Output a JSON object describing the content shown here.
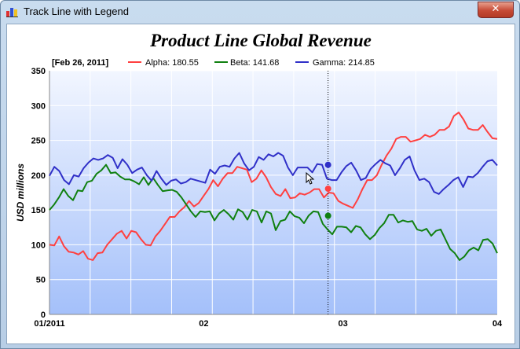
{
  "window": {
    "title": "Track Line with Legend",
    "close_label": "✕"
  },
  "chart_data": {
    "type": "line",
    "title": "Product Line Global Revenue",
    "ylabel": "USD millions",
    "xlabel": "",
    "ylim": [
      0,
      350
    ],
    "yticks": [
      0,
      50,
      100,
      150,
      200,
      250,
      300,
      350
    ],
    "xlim": [
      0,
      90
    ],
    "xticks": [
      {
        "label": "01/2011",
        "x": 0
      },
      {
        "label": "02",
        "x": 31
      },
      {
        "label": "03",
        "x": 59
      },
      {
        "label": "04",
        "x": 90
      }
    ],
    "grid": true,
    "legend_position": "top",
    "track_date_label": "[Feb 26, 2011]",
    "track_x": 56,
    "series": [
      {
        "name": "Alpha",
        "legend_label": "Alpha: 180.55",
        "color": "#ff4040",
        "tracked_value": 180.55,
        "values": [
          100,
          99,
          112,
          98,
          90,
          89,
          86,
          91,
          80,
          78,
          88,
          89,
          100,
          108,
          116,
          120,
          109,
          120,
          118,
          108,
          100,
          99,
          112,
          120,
          130,
          140,
          140,
          148,
          154,
          163,
          155,
          160,
          170,
          180,
          193,
          184,
          195,
          203,
          203,
          212,
          210,
          208,
          190,
          195,
          207,
          197,
          183,
          173,
          170,
          180,
          167,
          168,
          174,
          172,
          175,
          180,
          180,
          168,
          175,
          174,
          163,
          159,
          156,
          153,
          165,
          180,
          193,
          193,
          200,
          215,
          228,
          238,
          252,
          255,
          255,
          248,
          250,
          252,
          258,
          255,
          258,
          265,
          265,
          270,
          285,
          290,
          280,
          267,
          265,
          265,
          272,
          262,
          253,
          252
        ]
      },
      {
        "name": "Beta",
        "legend_label": "Beta: 141.68",
        "color": "#108010",
        "tracked_value": 141.68,
        "values": [
          150,
          158,
          168,
          180,
          170,
          164,
          178,
          177,
          190,
          192,
          202,
          207,
          215,
          203,
          204,
          198,
          194,
          194,
          191,
          187,
          197,
          186,
          196,
          186,
          177,
          178,
          179,
          176,
          168,
          158,
          148,
          140,
          148,
          147,
          148,
          135,
          145,
          150,
          144,
          136,
          151,
          147,
          136,
          150,
          148,
          132,
          148,
          145,
          121,
          134,
          136,
          148,
          141,
          139,
          131,
          142,
          148,
          147,
          130,
          122,
          115,
          126,
          126,
          125,
          118,
          127,
          125,
          115,
          108,
          114,
          124,
          131,
          143,
          143,
          132,
          135,
          133,
          134,
          122,
          120,
          123,
          113,
          120,
          122,
          108,
          94,
          88,
          78,
          83,
          92,
          96,
          92,
          107,
          108,
          102,
          88
        ]
      },
      {
        "name": "Gamma",
        "legend_label": "Gamma: 214.85",
        "color": "#3030c8",
        "tracked_value": 214.85,
        "values": [
          199,
          212,
          206,
          193,
          187,
          200,
          198,
          210,
          218,
          224,
          222,
          224,
          229,
          225,
          210,
          223,
          215,
          203,
          208,
          211,
          200,
          192,
          206,
          195,
          186,
          192,
          194,
          188,
          190,
          195,
          193,
          191,
          189,
          208,
          202,
          212,
          214,
          212,
          224,
          232,
          217,
          207,
          212,
          226,
          222,
          230,
          227,
          232,
          228,
          211,
          200,
          211,
          211,
          211,
          204,
          216,
          215,
          195,
          193,
          193,
          204,
          213,
          218,
          207,
          193,
          196,
          209,
          216,
          222,
          217,
          214,
          200,
          210,
          222,
          227,
          207,
          193,
          195,
          190,
          176,
          173,
          180,
          186,
          193,
          197,
          183,
          198,
          197,
          203,
          212,
          220,
          222,
          214
        ]
      }
    ]
  }
}
